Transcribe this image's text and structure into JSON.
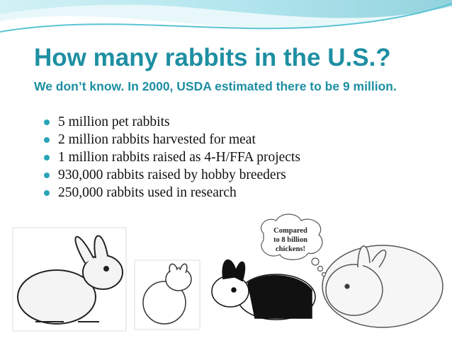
{
  "slide": {
    "title": "How many rabbits in the U.S.?",
    "subtitle": "We don’t know. In 2000, USDA estimated there to be 9 million.",
    "bullets": [
      "5 million pet rabbits",
      "2 million rabbits harvested for meat",
      "1 million rabbits raised as 4-H/FFA projects",
      "930,000 rabbits raised by hobby breeders",
      "250,000 rabbits used in research"
    ],
    "bubble_lines": [
      "Compared",
      "to 8 billion",
      "chickens!"
    ]
  }
}
